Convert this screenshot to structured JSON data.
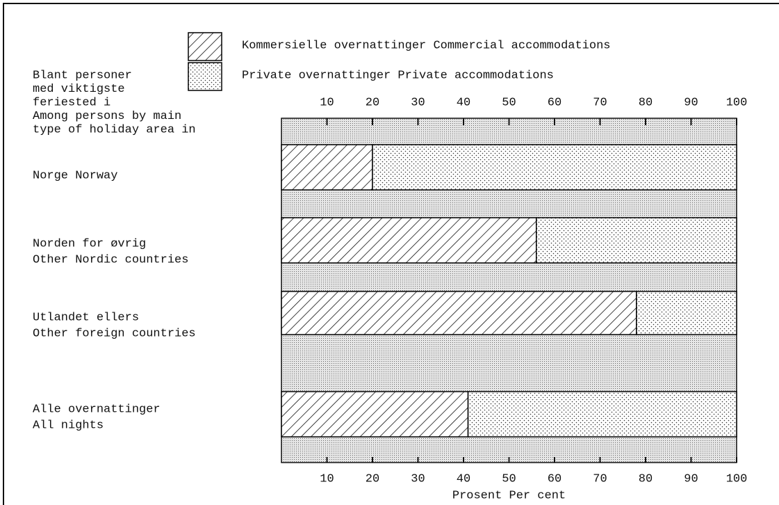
{
  "chart_data": {
    "type": "stacked_barh",
    "y_label": [
      "Blant personer",
      "med viktigste",
      "feriested i",
      "Among persons by main",
      "type of holiday area in"
    ],
    "x_label": "Prosent  Per cent",
    "categories": [
      [
        "Norge  Norway"
      ],
      [
        "Norden for øvrig",
        "Other Nordic countries"
      ],
      [
        "Utlandet ellers",
        "Other foreign countries"
      ],
      [
        "Alle overnattinger",
        "All nights"
      ]
    ],
    "series": [
      {
        "name": "Kommersielle overnattinger  Commercial accommodations",
        "color": "#000000",
        "pattern": "hatch",
        "values": [
          20,
          56,
          78,
          41
        ]
      },
      {
        "name": "Private overnattinger  Private accommodations",
        "color": "#000000",
        "pattern": "dots",
        "values": [
          80,
          44,
          22,
          59
        ]
      }
    ],
    "xlim": [
      0,
      100
    ],
    "xticks": [
      10,
      20,
      30,
      40,
      50,
      60,
      70,
      80,
      90,
      100
    ]
  }
}
